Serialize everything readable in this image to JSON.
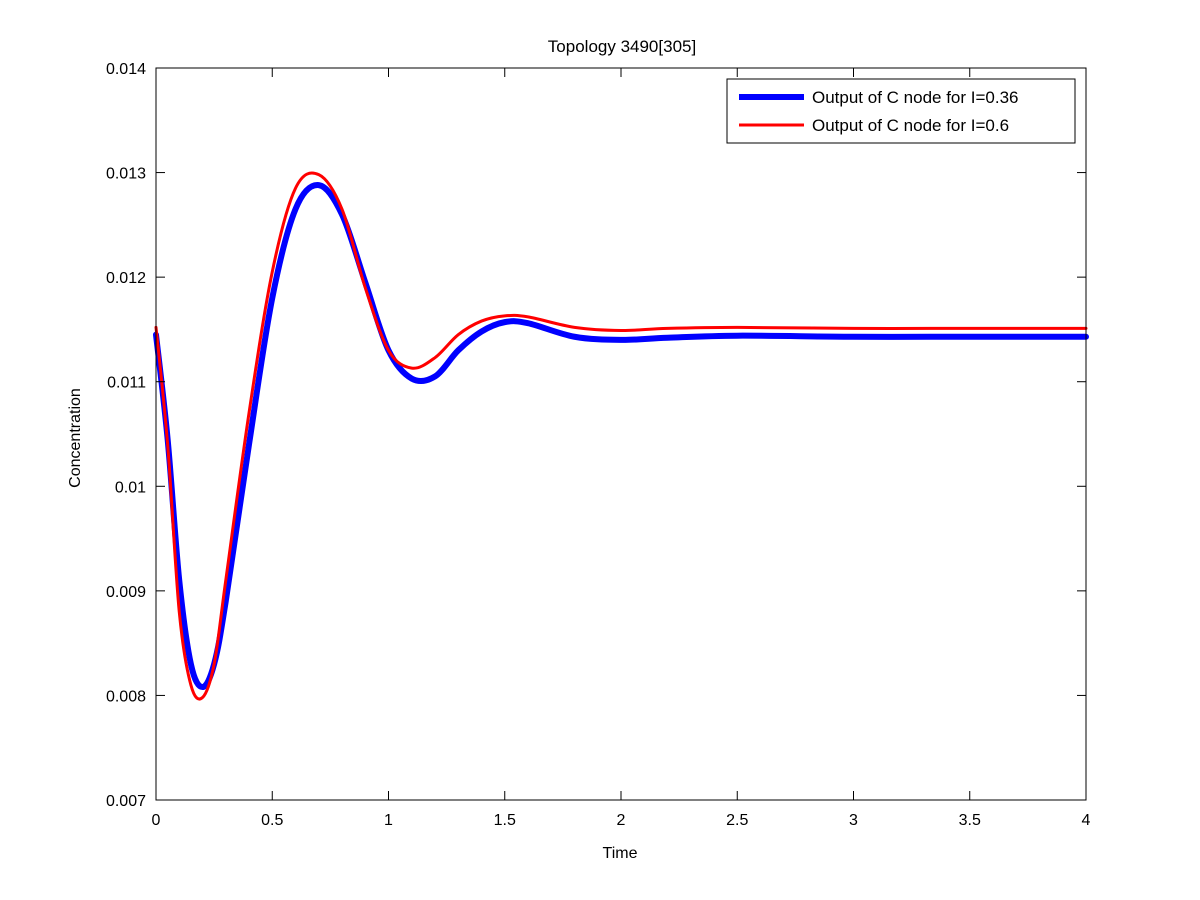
{
  "chart_data": {
    "type": "line",
    "title": "Topology 3490[305]",
    "xlabel": "Time",
    "ylabel": "Concentration",
    "xlim": [
      0,
      4
    ],
    "ylim": [
      0.007,
      0.014
    ],
    "xticks": [
      0,
      0.5,
      1,
      1.5,
      2,
      2.5,
      3,
      3.5,
      4
    ],
    "xtick_labels": [
      "0",
      "0.5",
      "1",
      "1.5",
      "2",
      "2.5",
      "3",
      "3.5",
      "4"
    ],
    "yticks": [
      0.007,
      0.008,
      0.009,
      0.01,
      0.011,
      0.012,
      0.013,
      0.014
    ],
    "ytick_labels": [
      "0.007",
      "0.008",
      "0.009",
      "0.01",
      "0.011",
      "0.012",
      "0.013",
      "0.014"
    ],
    "grid": false,
    "legend_position": "top-right",
    "series": [
      {
        "name": "Output of C node for I=0.36",
        "color": "#0000ff",
        "line_style": "thick",
        "x": [
          0,
          0.05,
          0.1,
          0.15,
          0.2,
          0.25,
          0.3,
          0.4,
          0.5,
          0.6,
          0.7,
          0.8,
          0.9,
          1.0,
          1.1,
          1.2,
          1.3,
          1.4,
          1.5,
          1.6,
          1.8,
          2.0,
          2.2,
          2.5,
          3.0,
          3.5,
          4.0
        ],
        "y": [
          0.01145,
          0.01045,
          0.0091,
          0.0083,
          0.00808,
          0.0083,
          0.0089,
          0.0104,
          0.0118,
          0.01265,
          0.01288,
          0.0126,
          0.01195,
          0.0113,
          0.01103,
          0.01105,
          0.0113,
          0.01148,
          0.01157,
          0.01156,
          0.01143,
          0.0114,
          0.01142,
          0.01144,
          0.01143,
          0.01143,
          0.01143
        ]
      },
      {
        "name": "Output of C node for I=0.6",
        "color": "#ff0000",
        "line_style": "thin",
        "x": [
          0,
          0.05,
          0.1,
          0.15,
          0.2,
          0.25,
          0.3,
          0.4,
          0.5,
          0.6,
          0.7,
          0.8,
          0.9,
          1.0,
          1.1,
          1.2,
          1.3,
          1.4,
          1.5,
          1.6,
          1.8,
          2.0,
          2.2,
          2.5,
          3.0,
          3.5,
          4.0
        ],
        "y": [
          0.01152,
          0.0104,
          0.0088,
          0.0081,
          0.00798,
          0.0083,
          0.0091,
          0.0107,
          0.01205,
          0.01285,
          0.01298,
          0.01265,
          0.0119,
          0.0113,
          0.01113,
          0.01123,
          0.01145,
          0.01158,
          0.01163,
          0.01162,
          0.01152,
          0.01149,
          0.01151,
          0.01152,
          0.01151,
          0.01151,
          0.01151
        ]
      }
    ]
  }
}
